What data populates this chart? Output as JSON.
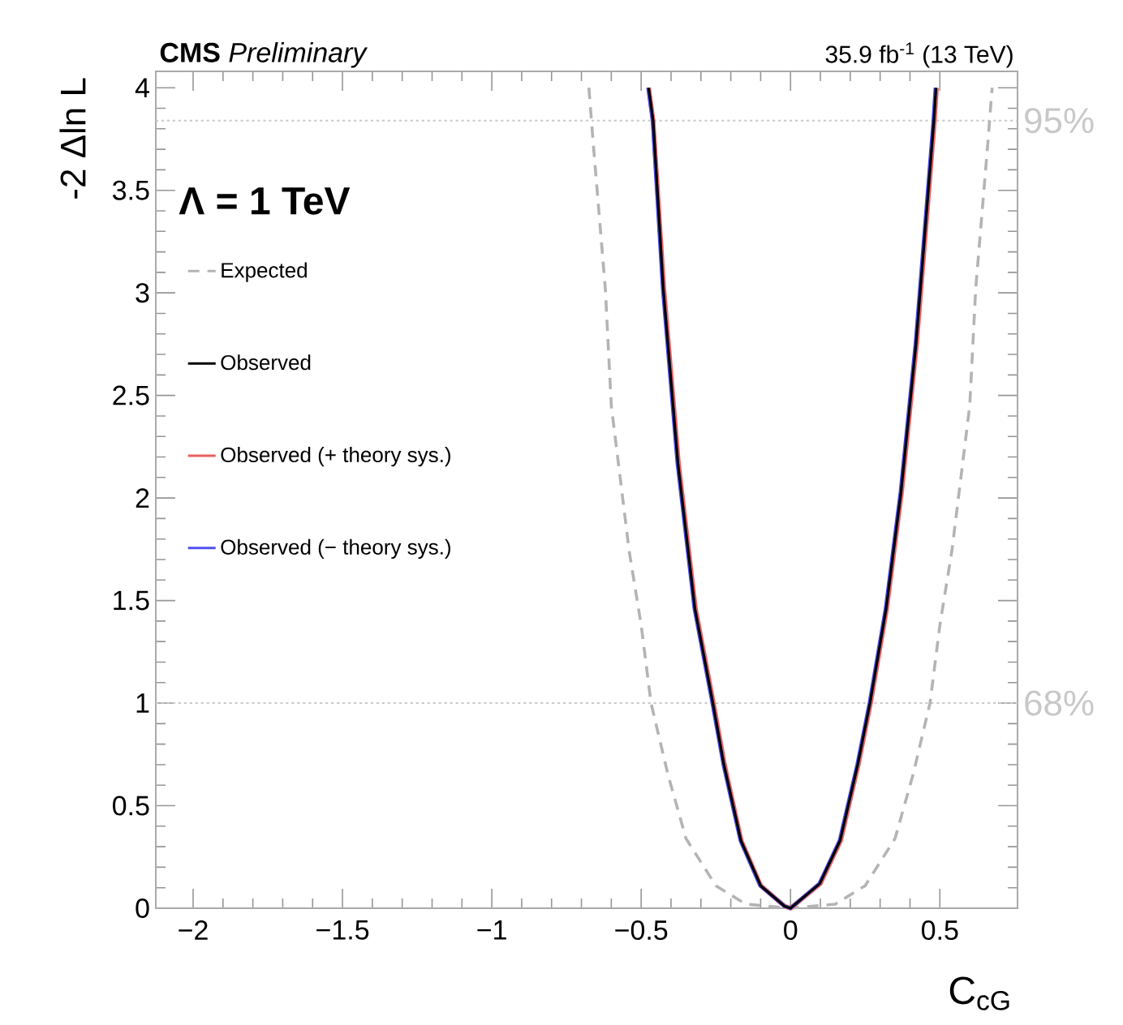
{
  "chart_data": {
    "type": "line",
    "title": "**CMS** *Preliminary*",
    "subtitle": "35.9 fb$^{-1}$ (13 TeV)",
    "xlabel": "C$_{cG}$",
    "ylabel": "-2 Δln L",
    "annotations": [
      "Λ = 1 TeV",
      {
        "text": "95%",
        "x": 0.76,
        "y": 3.84
      },
      {
        "text": "68%",
        "x": 0.76,
        "y": 1
      }
    ],
    "xlim": [
      -2.125,
      0.76
    ],
    "ylim": [
      0,
      4.08
    ],
    "xticks": [
      {
        "value": -2,
        "label": "−2"
      },
      {
        "value": -1.5,
        "label": "−1.5"
      },
      {
        "value": -1,
        "label": "−1"
      },
      {
        "value": -0.5,
        "label": "−0.5"
      },
      0,
      0.5
    ],
    "yticks": [
      0,
      0.5,
      1,
      1.5,
      2,
      2.5,
      3,
      3.5,
      4
    ],
    "legend": "left",
    "marker": "none",
    "ref_lines": [
      {
        "axis": "y",
        "value": 3.84,
        "color": "#c8c8c8",
        "line_style": "dotted"
      },
      {
        "axis": "y",
        "value": 1,
        "color": "#c8c8c8",
        "line_style": "dotted"
      }
    ],
    "series": [
      {
        "name": "Expected",
        "color": "#b4b4b4",
        "line_style": "dashed",
        "x": [
          -0.675,
          -0.66,
          -0.62,
          -0.6,
          -0.54,
          -0.5,
          -0.467,
          -0.41,
          -0.35,
          -0.25,
          -0.15,
          0,
          0.15,
          0.25,
          0.35,
          0.41,
          0.467,
          0.5,
          0.54,
          0.6,
          0.62,
          0.66,
          0.675
        ],
        "values": [
          4.0,
          3.72,
          3.02,
          2.45,
          1.74,
          1.38,
          1.0,
          0.65,
          0.34,
          0.11,
          0.02,
          0,
          0.02,
          0.11,
          0.34,
          0.65,
          1.0,
          1.38,
          1.74,
          2.45,
          3.02,
          3.72,
          4.0
        ]
      },
      {
        "name": "Observed",
        "color": "#000000",
        "line_style": "solid",
        "x": [
          -0.475,
          -0.46,
          -0.426,
          -0.377,
          -0.32,
          -0.26,
          -0.223,
          -0.166,
          -0.1,
          -0.02,
          0,
          0.098,
          0.166,
          0.225,
          0.266,
          0.32,
          0.37,
          0.42,
          0.48,
          0.487
        ],
        "values": [
          4.0,
          3.84,
          3.02,
          2.17,
          1.46,
          1.0,
          0.7,
          0.33,
          0.11,
          0.01,
          0,
          0.12,
          0.33,
          0.7,
          1.0,
          1.46,
          2.03,
          2.75,
          3.84,
          4.0
        ]
      },
      {
        "name": "Observed (+ theory sys.)",
        "color": "#e86060",
        "line_style": "solid",
        "x": [
          -0.475,
          -0.46,
          -0.424,
          -0.375,
          -0.318,
          -0.258,
          -0.221,
          -0.165,
          -0.1,
          -0.02,
          0,
          0.1,
          0.168,
          0.227,
          0.268,
          0.322,
          0.372,
          0.422,
          0.482,
          0.489
        ],
        "values": [
          4.0,
          3.84,
          3.02,
          2.17,
          1.46,
          1.0,
          0.7,
          0.33,
          0.11,
          0.01,
          0,
          0.12,
          0.33,
          0.7,
          1.0,
          1.46,
          2.03,
          2.75,
          3.84,
          4.0
        ]
      },
      {
        "name": "Observed (− theory sys.)",
        "color": "#5050f0",
        "line_style": "solid",
        "x": [
          -0.477,
          -0.462,
          -0.428,
          -0.379,
          -0.322,
          -0.262,
          -0.225,
          -0.168,
          -0.102,
          -0.02,
          0,
          0.096,
          0.164,
          0.223,
          0.264,
          0.318,
          0.368,
          0.418,
          0.478,
          0.485
        ],
        "values": [
          4.0,
          3.84,
          3.02,
          2.17,
          1.46,
          1.0,
          0.7,
          0.33,
          0.11,
          0.01,
          0,
          0.12,
          0.33,
          0.7,
          1.0,
          1.46,
          2.03,
          2.75,
          3.84,
          4.0
        ]
      }
    ]
  }
}
